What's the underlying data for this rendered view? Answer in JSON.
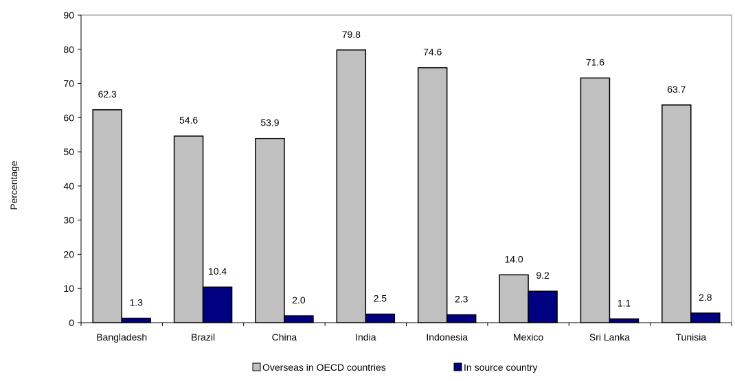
{
  "chart_data": {
    "type": "bar",
    "categories": [
      "Bangladesh",
      "Brazil",
      "China",
      "India",
      "Indonesia",
      "Mexico",
      "Sri Lanka",
      "Tunisia"
    ],
    "series": [
      {
        "name": "Overseas in OECD countries",
        "color": "#c0c0c0",
        "values": [
          62.3,
          54.6,
          53.9,
          79.8,
          74.6,
          14.0,
          71.6,
          63.7
        ]
      },
      {
        "name": "In source country",
        "color": "#000080",
        "values": [
          1.3,
          10.4,
          2.0,
          2.5,
          2.3,
          9.2,
          1.1,
          2.8
        ]
      }
    ],
    "ylabel": "Percentage",
    "ylim": [
      0,
      90
    ],
    "yticks": [
      0,
      10,
      20,
      30,
      40,
      50,
      60,
      70,
      80,
      90
    ],
    "grid": false,
    "legend": "bottom-center"
  }
}
